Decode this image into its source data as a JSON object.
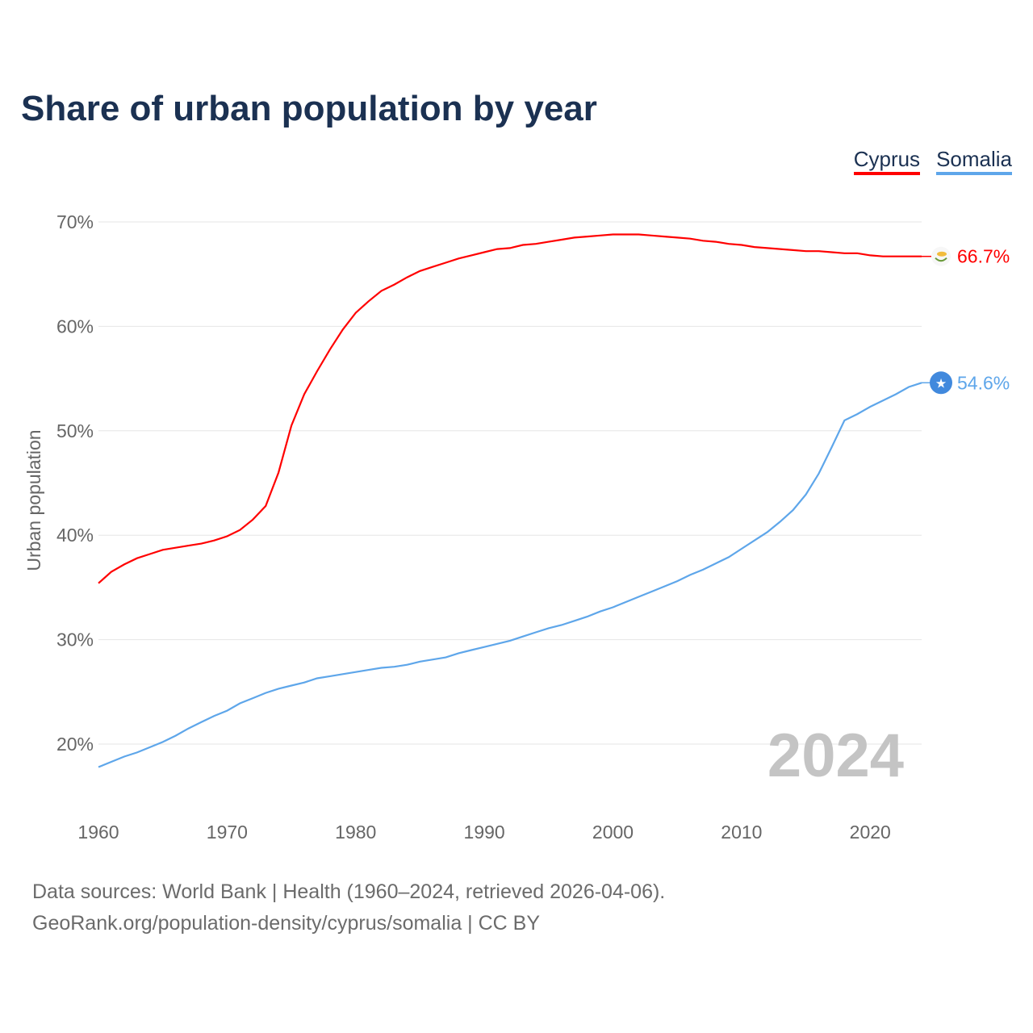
{
  "title": "Share of urban population by year",
  "legend": [
    {
      "label": "Cyprus",
      "color": "#ff0000"
    },
    {
      "label": "Somalia",
      "color": "#5ea6ea"
    }
  ],
  "footer": {
    "line1": "Data sources: World Bank | Health (1960–2024, retrieved 2026-04-06).",
    "line2": "GeoRank.org/population-density/cyprus/somalia | CC BY"
  },
  "chart_data": {
    "type": "line",
    "title": "Share of urban population by year",
    "xlabel": "",
    "ylabel": "Urban population",
    "ylim": [
      20,
      70
    ],
    "xlim": [
      1960,
      2024
    ],
    "yticks": [
      20,
      30,
      40,
      50,
      60,
      70
    ],
    "ytick_labels": [
      "20%",
      "30%",
      "40%",
      "50%",
      "60%",
      "70%"
    ],
    "xticks": [
      1960,
      1970,
      1980,
      1990,
      2000,
      2010,
      2020
    ],
    "xtick_labels": [
      "1960",
      "1970",
      "1980",
      "1990",
      "2000",
      "2010",
      "2020"
    ],
    "grid": true,
    "legend_position": "top-right",
    "year_watermark": "2024",
    "x_start": 1960,
    "series": [
      {
        "name": "Cyprus",
        "color": "#ff0000",
        "end_label": "66.7%",
        "flag_icon": "cyprus-flag-icon",
        "values": [
          35.4,
          36.5,
          37.2,
          37.8,
          38.2,
          38.6,
          38.8,
          39.0,
          39.2,
          39.5,
          39.9,
          40.5,
          41.5,
          42.8,
          46.0,
          50.5,
          53.5,
          55.7,
          57.8,
          59.7,
          61.3,
          62.4,
          63.4,
          64.0,
          64.7,
          65.3,
          65.7,
          66.1,
          66.5,
          66.8,
          67.1,
          67.4,
          67.5,
          67.8,
          67.9,
          68.1,
          68.3,
          68.5,
          68.6,
          68.7,
          68.8,
          68.8,
          68.8,
          68.7,
          68.6,
          68.5,
          68.4,
          68.2,
          68.1,
          67.9,
          67.8,
          67.6,
          67.5,
          67.4,
          67.3,
          67.2,
          67.2,
          67.1,
          67.0,
          67.0,
          66.8,
          66.7,
          66.7,
          66.7,
          66.7
        ]
      },
      {
        "name": "Somalia",
        "color": "#5ea6ea",
        "end_label": "54.6%",
        "flag_icon": "somalia-flag-icon",
        "values": [
          17.8,
          18.3,
          18.8,
          19.2,
          19.7,
          20.2,
          20.8,
          21.5,
          22.1,
          22.7,
          23.2,
          23.9,
          24.4,
          24.9,
          25.3,
          25.6,
          25.9,
          26.3,
          26.5,
          26.7,
          26.9,
          27.1,
          27.3,
          27.4,
          27.6,
          27.9,
          28.1,
          28.3,
          28.7,
          29.0,
          29.3,
          29.6,
          29.9,
          30.3,
          30.7,
          31.1,
          31.4,
          31.8,
          32.2,
          32.7,
          33.1,
          33.6,
          34.1,
          34.6,
          35.1,
          35.6,
          36.2,
          36.7,
          37.3,
          37.9,
          38.7,
          39.5,
          40.3,
          41.3,
          42.4,
          43.9,
          45.9,
          48.4,
          51.0,
          51.6,
          52.3,
          52.9,
          53.5,
          54.2,
          54.6
        ]
      }
    ]
  }
}
